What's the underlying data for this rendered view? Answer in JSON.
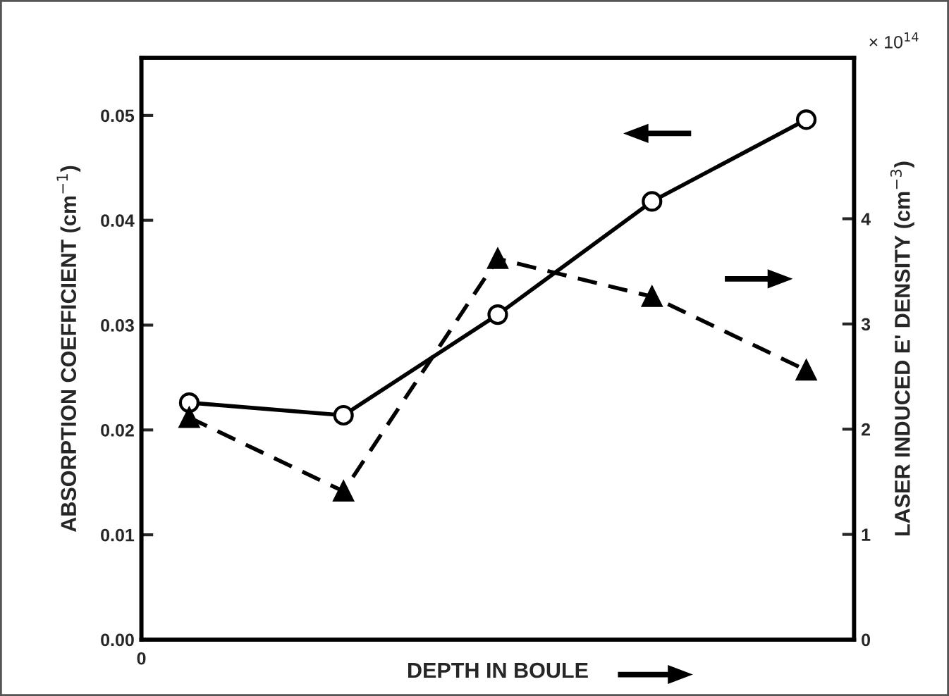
{
  "chart_data": {
    "type": "line",
    "xlabel": "DEPTH IN BOULE",
    "ylabel": "ABSORPTION COEFFICIENT (cm$^{−1}$)",
    "y2label": "LASER INDUCED E' DENSITY (cm$^{−3}$)",
    "categories": [
      null,
      null,
      null,
      null,
      null
    ],
    "series": [
      {
        "color": "#000000",
        "values": [
          0.0226,
          0.0214,
          0.031,
          0.0418,
          0.0496
        ],
        "marker": "circle",
        "line_style": "solid"
      },
      {
        "color": "#000000",
        "values": [
          2.11,
          1.41,
          3.62,
          3.26,
          2.56
        ],
        "marker": "triangle",
        "line_style": "dashed",
        "axis": "y2"
      }
    ],
    "ylim": [
      0,
      0.0555
    ],
    "yticks": [
      {
        "value": 0,
        "label": "0.00"
      },
      {
        "value": 0.01,
        "label": "0.01"
      },
      {
        "value": 0.02,
        "label": "0.02"
      },
      {
        "value": 0.03,
        "label": "0.03"
      },
      {
        "value": 0.04,
        "label": "0.04"
      },
      {
        "value": 0.05,
        "label": "0.05"
      }
    ],
    "y2lim": [
      0,
      5.53
    ],
    "y2ticks": [
      0,
      1,
      2,
      3,
      4
    ],
    "annotations": [
      "0",
      "× 10$^{14}$"
    ],
    "grid": false,
    "legend": false
  }
}
